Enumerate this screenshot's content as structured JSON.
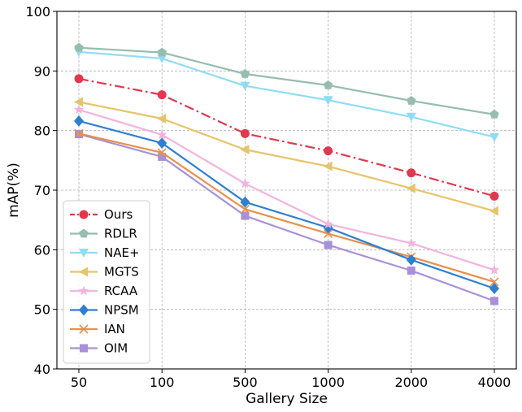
{
  "chart_data": {
    "type": "line",
    "title": "",
    "xlabel": "Gallery Size",
    "ylabel": "mAP(%)",
    "categories": [
      "50",
      "100",
      "500",
      "1000",
      "2000",
      "4000"
    ],
    "ylim": [
      40,
      100
    ],
    "yticks": [
      "40",
      "50",
      "60",
      "70",
      "80",
      "90",
      "100"
    ],
    "grid": true,
    "legend_position": "lower-left",
    "series": [
      {
        "name": "Ours",
        "values": [
          88.7,
          86.0,
          79.5,
          76.6,
          72.9,
          69.0
        ],
        "color": "#e0384f",
        "marker": "circle",
        "dash": "dashdot"
      },
      {
        "name": "RDLR",
        "values": [
          93.9,
          93.1,
          89.5,
          87.6,
          85.0,
          82.7
        ],
        "color": "#96bdae",
        "marker": "pentagon",
        "dash": "solid"
      },
      {
        "name": "NAE+",
        "values": [
          93.2,
          92.1,
          87.5,
          85.1,
          82.3,
          78.9
        ],
        "color": "#8fdcf5",
        "marker": "triangle-down",
        "dash": "solid"
      },
      {
        "name": "MGTS",
        "values": [
          84.8,
          82.0,
          76.8,
          74.0,
          70.3,
          66.5
        ],
        "color": "#e5c46b",
        "marker": "triangle-left",
        "dash": "solid"
      },
      {
        "name": "RCAA",
        "values": [
          83.5,
          79.3,
          71.1,
          64.3,
          61.1,
          56.6
        ],
        "color": "#f4b3dd",
        "marker": "star",
        "dash": "solid"
      },
      {
        "name": "NPSM",
        "values": [
          81.6,
          77.9,
          68.0,
          63.7,
          58.3,
          53.5
        ],
        "color": "#2f7fd1",
        "marker": "diamond",
        "dash": "solid"
      },
      {
        "name": "IAN",
        "values": [
          79.5,
          76.3,
          66.8,
          62.7,
          58.8,
          54.6
        ],
        "color": "#e8904c",
        "marker": "x",
        "dash": "solid"
      },
      {
        "name": "OIM",
        "values": [
          79.4,
          75.6,
          65.7,
          60.8,
          56.5,
          51.4
        ],
        "color": "#a891d8",
        "marker": "square",
        "dash": "solid"
      }
    ]
  }
}
